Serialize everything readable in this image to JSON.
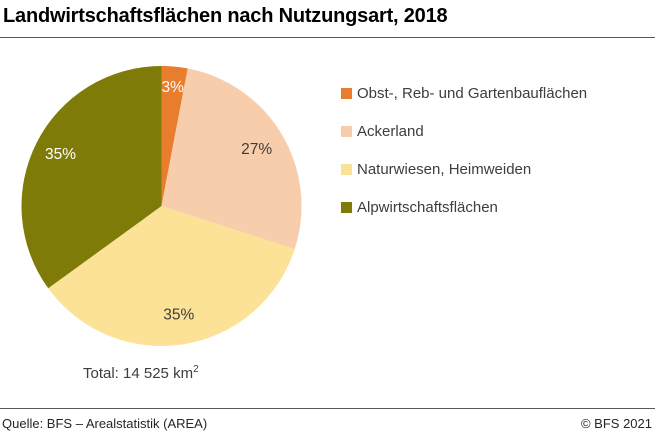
{
  "header": {
    "title": "Landwirtschaftsflächen nach Nutzungsart, 2018"
  },
  "chart_data": {
    "type": "pie",
    "title": "Landwirtschaftsflächen nach Nutzungsart, 2018",
    "unit": "percent",
    "direction": "clockwise",
    "start_angle_deg": 0,
    "legend_position": "right",
    "slices": [
      {
        "label": "Obst-, Reb- und Gartenbauflächen",
        "value_pct": 3,
        "display": "3%",
        "color": "#e87d2e",
        "label_color": "#ffffff",
        "label_r_frac": 0.85
      },
      {
        "label": "Ackerland",
        "value_pct": 27,
        "display": "27%",
        "color": "#f7cdab",
        "label_color": "#3d3d3d",
        "label_r_frac": 0.79
      },
      {
        "label": "Naturwiesen, Heimweiden",
        "value_pct": 35,
        "display": "35%",
        "color": "#fbe296",
        "label_color": "#3d3d3d",
        "label_r_frac": 0.79
      },
      {
        "label": "Alpwirtschaftsflächen",
        "value_pct": 35,
        "display": "35%",
        "color": "#7f7b08",
        "label_color": "#ffffff",
        "label_r_frac": 0.81
      }
    ],
    "total_label": "Total: 14 525 km",
    "total_exponent": "2"
  },
  "footer": {
    "source": "Quelle: BFS – Arealstatistik (AREA)",
    "copyright": "© BFS 2021"
  }
}
